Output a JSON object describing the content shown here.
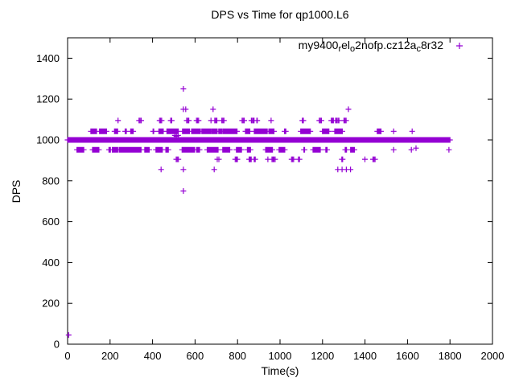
{
  "window": {
    "background": "#ffffff",
    "axis_color": "#000000"
  },
  "chart_data": {
    "type": "scatter",
    "title": "DPS vs Time for qp1000.L6",
    "xlabel": "Time(s)",
    "ylabel": "DPS",
    "xlim": [
      0,
      2000
    ],
    "ylim": [
      0,
      1500
    ],
    "xticks": [
      0,
      200,
      400,
      600,
      800,
      1000,
      1200,
      1400,
      1600,
      1800,
      2000
    ],
    "yticks": [
      0,
      200,
      400,
      600,
      800,
      1000,
      1200,
      1400
    ],
    "grid": false,
    "legend_position": "top-right-inside",
    "marker": {
      "shape": "plus",
      "color": "#9400D3",
      "size": 7
    },
    "series": [
      {
        "label_segments": [
          {
            "text": "my9400"
          },
          {
            "text": "r",
            "sub": true
          },
          {
            "text": "el"
          },
          {
            "text": "o",
            "sub": true
          },
          {
            "text": "2nofp.cz12a"
          },
          {
            "text": "c",
            "sub": true
          },
          {
            "text": "8r32"
          }
        ],
        "bands": [
          {
            "y": 1000,
            "x_start": 0,
            "x_end": 1800,
            "mode": "even",
            "step": 2
          },
          {
            "y": 1042,
            "x_start": 40,
            "x_end": 1480,
            "mode": "clusters",
            "clusters": 42,
            "run_min": 2,
            "run_max": 13,
            "step": 3,
            "seed": 11
          },
          {
            "y": 952,
            "x_start": 40,
            "x_end": 1480,
            "mode": "clusters",
            "clusters": 42,
            "run_min": 2,
            "run_max": 13,
            "step": 3,
            "seed": 22
          },
          {
            "y": 1095,
            "x_start": 130,
            "x_end": 1465,
            "mode": "clusters",
            "clusters": 22,
            "run_min": 1,
            "run_max": 3,
            "step": 5,
            "seed": 33
          },
          {
            "y": 905,
            "x_start": 425,
            "x_end": 1465,
            "mode": "clusters",
            "clusters": 18,
            "run_min": 1,
            "run_max": 3,
            "step": 5,
            "seed": 44
          }
        ],
        "outliers": [
          [
            5,
            45
          ],
          [
            545,
            1250
          ],
          [
            545,
            750
          ],
          [
            545,
            1150
          ],
          [
            556,
            1150
          ],
          [
            685,
            1150
          ],
          [
            1322,
            1150
          ],
          [
            440,
            855
          ],
          [
            545,
            855
          ],
          [
            690,
            855
          ],
          [
            1272,
            855
          ],
          [
            1292,
            855
          ],
          [
            1312,
            855
          ],
          [
            1332,
            855
          ],
          [
            505,
            1022
          ],
          [
            512,
            1018
          ],
          [
            520,
            1022
          ],
          [
            1535,
            1042
          ],
          [
            1622,
            1042
          ],
          [
            1535,
            952
          ],
          [
            1618,
            952
          ],
          [
            1640,
            960
          ],
          [
            1795,
            952
          ]
        ]
      }
    ]
  }
}
